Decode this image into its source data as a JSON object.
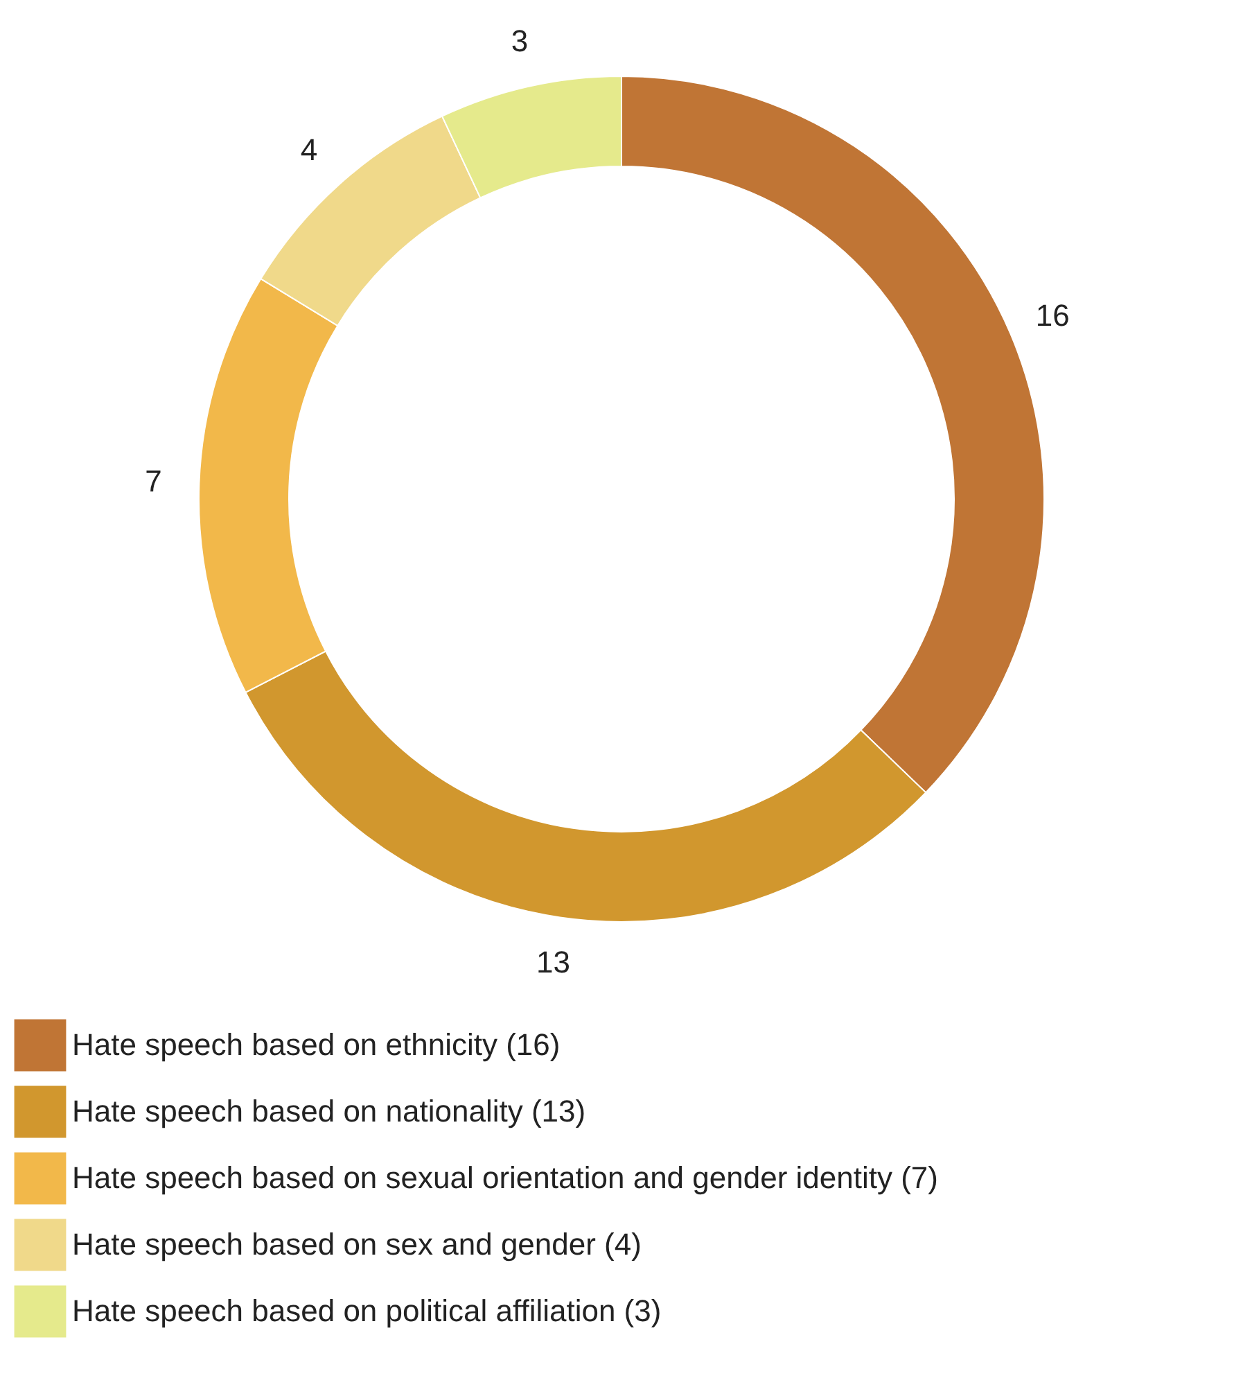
{
  "chart_data": {
    "type": "donut",
    "categories": [
      "Hate speech based on ethnicity (16)",
      "Hate speech based on nationality  (13)",
      "Hate speech based on sexual orientation and gender identity (7)",
      "Hate speech based on sex and gender (4)",
      "Hate speech based on political affiliation (3)"
    ],
    "values": [
      16,
      13,
      7,
      4,
      3
    ],
    "colors": [
      "#c07535",
      "#d1972e",
      "#f2b84a",
      "#f0d98a",
      "#e5ea8c"
    ],
    "data_labels": true,
    "legend": "bottom left"
  }
}
